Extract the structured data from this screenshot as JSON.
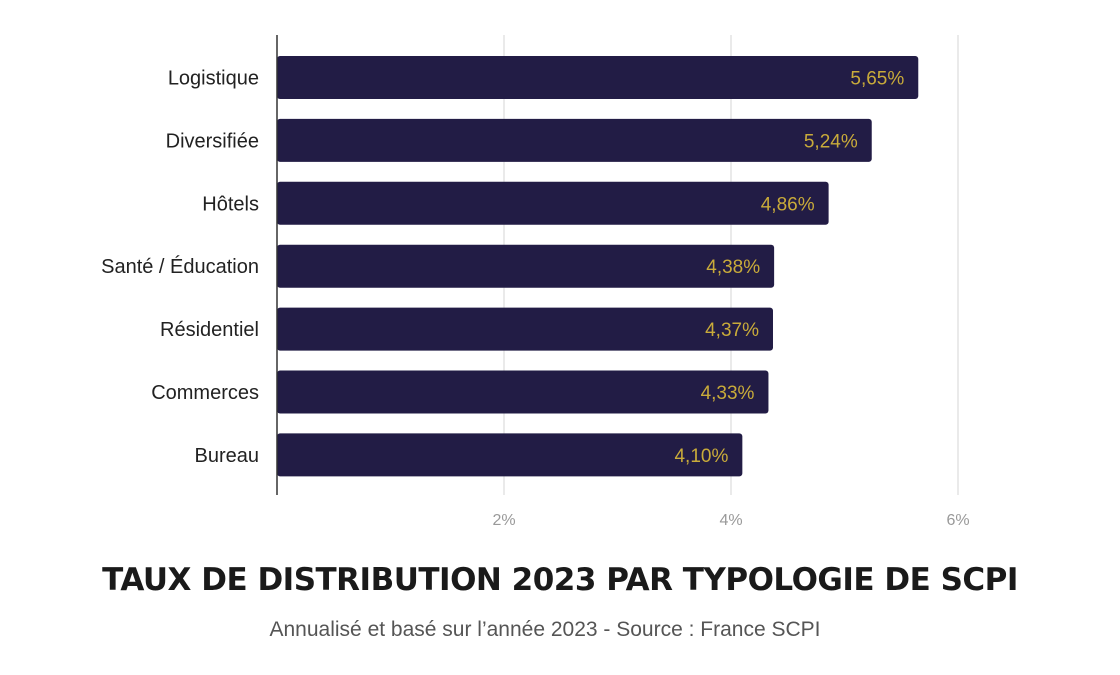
{
  "chart_data": {
    "type": "bar",
    "orientation": "horizontal",
    "title": "TAUX DE DISTRIBUTION 2023 PAR TYPOLOGIE DE SCPI",
    "subtitle": "Annualisé et basé sur l’année 2023 - Source : France SCPI",
    "categories": [
      "Logistique",
      "Diversifiée",
      "Hôtels",
      "Santé / Éducation",
      "Résidentiel",
      "Commerces",
      "Bureau"
    ],
    "values": [
      5.65,
      5.24,
      4.86,
      4.38,
      4.37,
      4.33,
      4.1
    ],
    "data_labels": [
      "5,65%",
      "5,24%",
      "4,86%",
      "4,38%",
      "4,37%",
      "4,33%",
      "4,10%"
    ],
    "xlim": [
      0,
      6
    ],
    "x_ticks": [
      2,
      4,
      6
    ],
    "x_tick_labels": [
      "2%",
      "4%",
      "6%"
    ],
    "grid": true,
    "colors": {
      "bar": "#221c45",
      "label": "#c9ab3a",
      "grid": "#dddddd",
      "axis": "#333333"
    }
  }
}
